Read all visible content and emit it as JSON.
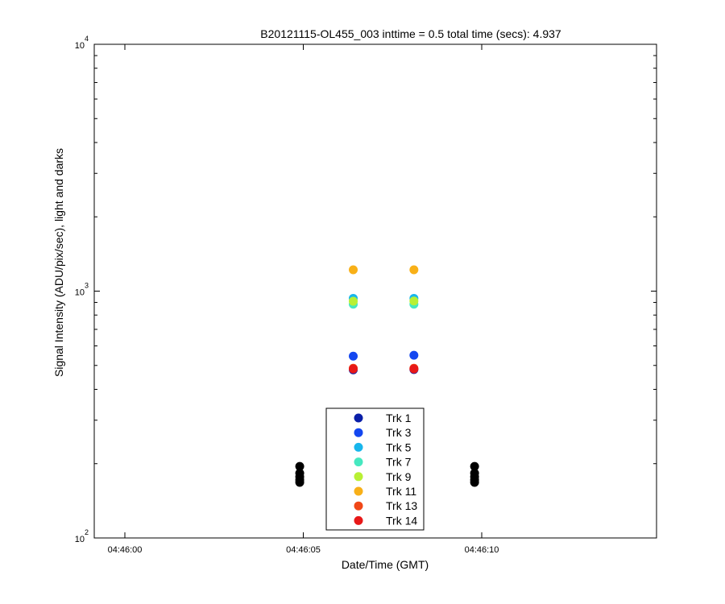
{
  "chart_data": {
    "type": "scatter",
    "title": "B20121115-OL455_003 inttime = 0.5 total time (secs): 4.937",
    "xlabel": "Date/Time (GMT)",
    "ylabel": "Signal Intensity (ADU/pix/sec), light and darks",
    "x_time_range": [
      "04:46:00",
      "04:46:10"
    ],
    "x_tick_labels": [
      "04:46:00",
      "04:46:05",
      "04:46:10"
    ],
    "y_scale": "log",
    "y_range": [
      100,
      10000
    ],
    "y_tick_labels": [
      {
        "base": "10",
        "exp": "2"
      },
      {
        "base": "10",
        "exp": "3"
      },
      {
        "base": "10",
        "exp": "4"
      }
    ],
    "legend_position": "bottom-center",
    "series": [
      {
        "name": "Trk 1",
        "color": "#0a1fa8",
        "points": [
          [
            "04:46:06.4",
            480
          ],
          [
            "04:46:08.1",
            481
          ]
        ]
      },
      {
        "name": "Trk 3",
        "color": "#1447f0",
        "points": [
          [
            "04:46:06.4",
            545
          ],
          [
            "04:46:08.1",
            550
          ]
        ]
      },
      {
        "name": "Trk 5",
        "color": "#18b6ec",
        "points": [
          [
            "04:46:06.4",
            935
          ],
          [
            "04:46:08.1",
            935
          ]
        ]
      },
      {
        "name": "Trk 7",
        "color": "#46e8c0",
        "points": [
          [
            "04:46:06.4",
            885
          ],
          [
            "04:46:08.1",
            885
          ]
        ]
      },
      {
        "name": "Trk 9",
        "color": "#b8f034",
        "points": [
          [
            "04:46:06.4",
            910
          ],
          [
            "04:46:08.1",
            912
          ]
        ]
      },
      {
        "name": "Trk 11",
        "color": "#f8b018",
        "points": [
          [
            "04:46:06.4",
            1220
          ],
          [
            "04:46:08.1",
            1220
          ]
        ]
      },
      {
        "name": "Trk 13",
        "color": "#f04818",
        "points": [
          [
            "04:46:06.4",
            487
          ],
          [
            "04:46:08.1",
            487
          ]
        ]
      },
      {
        "name": "Trk 14",
        "color": "#e81818",
        "points": [
          [
            "04:46:06.4",
            484
          ],
          [
            "04:46:08.1",
            484
          ]
        ]
      }
    ],
    "darks": {
      "color": "#000000",
      "points": [
        [
          "04:46:04.9",
          195
        ],
        [
          "04:46:04.9",
          183
        ],
        [
          "04:46:04.9",
          177
        ],
        [
          "04:46:04.9",
          172
        ],
        [
          "04:46:04.9",
          168
        ],
        [
          "04:46:09.8",
          195
        ],
        [
          "04:46:09.8",
          183
        ],
        [
          "04:46:09.8",
          177
        ],
        [
          "04:46:09.8",
          172
        ],
        [
          "04:46:09.8",
          168
        ]
      ]
    }
  }
}
